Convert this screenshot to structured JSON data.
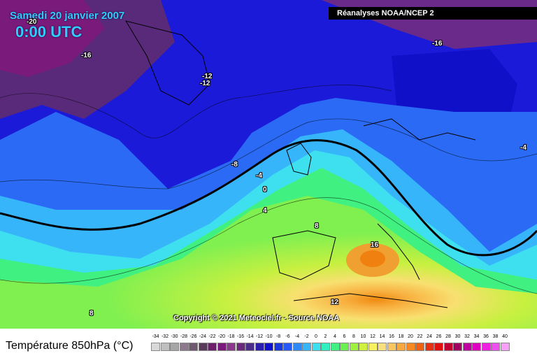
{
  "header": {
    "date": "Samedi 20 janvier 2007",
    "time": "0:00 UTC",
    "source": "Réanalyses NOAA/NCEP 2"
  },
  "footer": {
    "copyright": "Copyright © 2021 Meteociel.fr - Source NOAA",
    "legend_title": "Température 850hPa (°C)"
  },
  "contour_labels": [
    "-20",
    "-16",
    "-16",
    "-12",
    "-12",
    "-8",
    "-4",
    "0",
    "4",
    "8",
    "12",
    "16",
    "-4",
    "8"
  ],
  "scale": {
    "ticks": [
      "-34",
      "-32",
      "-30",
      "-28",
      "-26",
      "-24",
      "-22",
      "-20",
      "-18",
      "-16",
      "-14",
      "-12",
      "-10",
      "-8",
      "-6",
      "-4",
      "-2",
      "0",
      "2",
      "4",
      "6",
      "8",
      "10",
      "12",
      "14",
      "16",
      "18",
      "20",
      "22",
      "24",
      "26",
      "28",
      "30",
      "32",
      "34",
      "36",
      "38",
      "40"
    ],
    "colors": [
      "#d9d9d9",
      "#bfbfbf",
      "#a6a6a6",
      "#8c7a8c",
      "#6e5a6e",
      "#5a3a5a",
      "#6a1f6a",
      "#7a1a7a",
      "#8a3a8a",
      "#6b2a7b",
      "#4b2d8a",
      "#2b1fb0",
      "#1010d0",
      "#1a3ae0",
      "#2a5af5",
      "#2f8af8",
      "#37b5fb",
      "#3ee0f0",
      "#30f0c0",
      "#40f080",
      "#6af050",
      "#a0f040",
      "#d0f040",
      "#f8f060",
      "#f8e080",
      "#f8c860",
      "#f8a840",
      "#f88820",
      "#f06010",
      "#e83010",
      "#e01010",
      "#c00030",
      "#a00060",
      "#c000a0",
      "#e000c0",
      "#f020e0",
      "#f050f0",
      "#f8a0f8"
    ]
  }
}
